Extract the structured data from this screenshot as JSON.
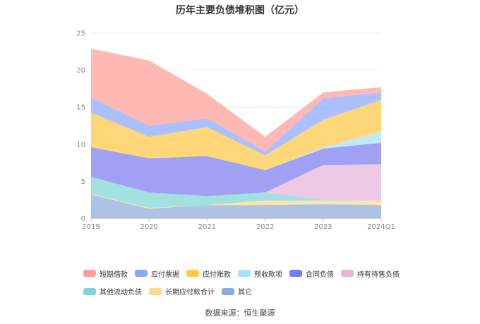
{
  "chart_data": {
    "type": "area",
    "stacked": true,
    "title": "历年主要负债堆积图（亿元）",
    "categories": [
      "2019",
      "2020",
      "2021",
      "2022",
      "2023",
      "2024Q1"
    ],
    "ylim": [
      0,
      25
    ],
    "yticks": [
      "0",
      "5",
      "10",
      "15",
      "20",
      "25"
    ],
    "grid": true,
    "legend_position": "bottom",
    "series": [
      {
        "name": "其它",
        "color": "#8FAADC",
        "values": [
          3.2,
          1.3,
          1.8,
          1.8,
          1.9,
          1.8
        ]
      },
      {
        "name": "长期应付款合计",
        "color": "#FFD98E",
        "values": [
          0.1,
          0.1,
          0.0,
          0.6,
          0.5,
          0.6
        ]
      },
      {
        "name": "其他流动负债",
        "color": "#7FD6D6",
        "values": [
          2.3,
          2.1,
          1.2,
          1.1,
          0.1,
          0.0
        ]
      },
      {
        "name": "持有待售负债",
        "color": "#E8B4D8",
        "values": [
          0.0,
          0.0,
          0.0,
          0.0,
          4.7,
          4.9
        ]
      },
      {
        "name": "合同负债",
        "color": "#7B7BF0",
        "values": [
          4.0,
          4.6,
          5.4,
          3.0,
          2.2,
          2.9
        ]
      },
      {
        "name": "预收款项",
        "color": "#A8E0FF",
        "values": [
          0.0,
          0.0,
          0.0,
          0.0,
          0.2,
          1.5
        ]
      },
      {
        "name": "应付账款",
        "color": "#FFC845",
        "values": [
          4.7,
          2.9,
          3.9,
          2.0,
          3.7,
          4.3
        ]
      },
      {
        "name": "应付票据",
        "color": "#8AA8FF",
        "values": [
          2.0,
          1.5,
          1.2,
          0.5,
          2.9,
          1.0
        ]
      },
      {
        "name": "短期借款",
        "color": "#FF9E97",
        "values": [
          6.6,
          8.8,
          3.3,
          2.0,
          0.8,
          0.7
        ]
      }
    ],
    "legend_order": [
      "短期借款",
      "应付票据",
      "应付账款",
      "预收款项",
      "合同负债",
      "持有待售负债",
      "其他流动负债",
      "长期应付款合计",
      "其它"
    ]
  },
  "source_text": "数据来源：恒生聚源"
}
